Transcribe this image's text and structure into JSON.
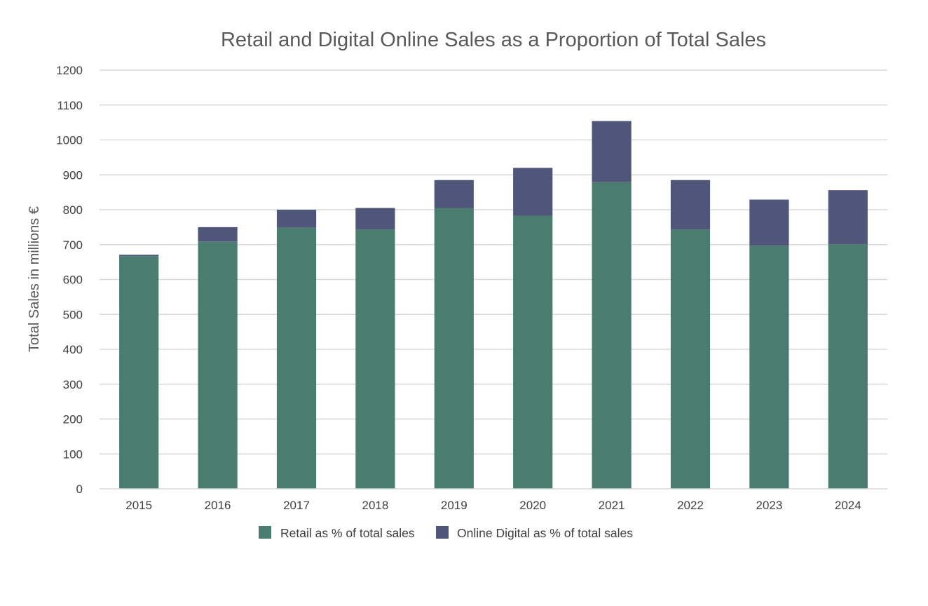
{
  "chart_data": {
    "type": "bar",
    "stacked": true,
    "title": "Retail and Digital Online Sales as a Proportion of Total Sales",
    "xlabel": "",
    "ylabel": "Total Sales in millions €",
    "ylim": [
      0,
      1200
    ],
    "yticks": [
      0,
      100,
      200,
      300,
      400,
      500,
      600,
      700,
      800,
      900,
      1000,
      1100,
      1200
    ],
    "grid": true,
    "legend_position": "bottom",
    "categories": [
      "2015",
      "2016",
      "2017",
      "2018",
      "2019",
      "2020",
      "2021",
      "2022",
      "2023",
      "2024"
    ],
    "series": [
      {
        "name": "Retail as % of total sales",
        "color": "#4a7d70",
        "values": [
          667,
          709,
          749,
          743,
          805,
          783,
          879,
          743,
          697,
          701
        ]
      },
      {
        "name": "Online Digital as % of total sales",
        "color": "#4f567a",
        "values": [
          4,
          41,
          51,
          62,
          80,
          137,
          175,
          142,
          132,
          155
        ]
      }
    ]
  }
}
